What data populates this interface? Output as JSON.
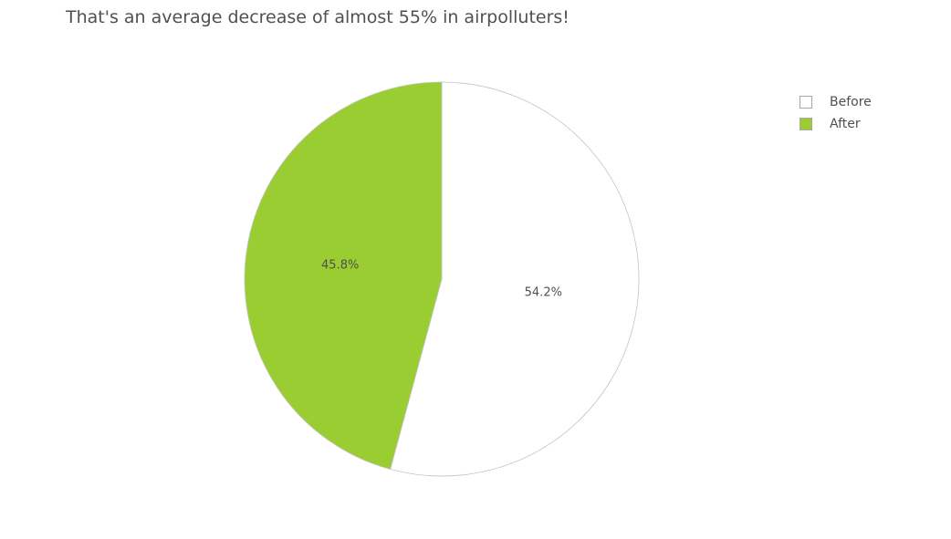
{
  "chart_data": {
    "type": "pie",
    "title": "That's an average decrease of almost 55% in airpolluters!",
    "slices": [
      {
        "name": "Before",
        "value": 54.2,
        "label": "54.2%",
        "color": "#ffffff"
      },
      {
        "name": "After",
        "value": 45.8,
        "label": "45.8%",
        "color": "#9acd32"
      }
    ],
    "direction": "clockwise",
    "start": "top",
    "legend": {
      "position": "top-right"
    }
  }
}
